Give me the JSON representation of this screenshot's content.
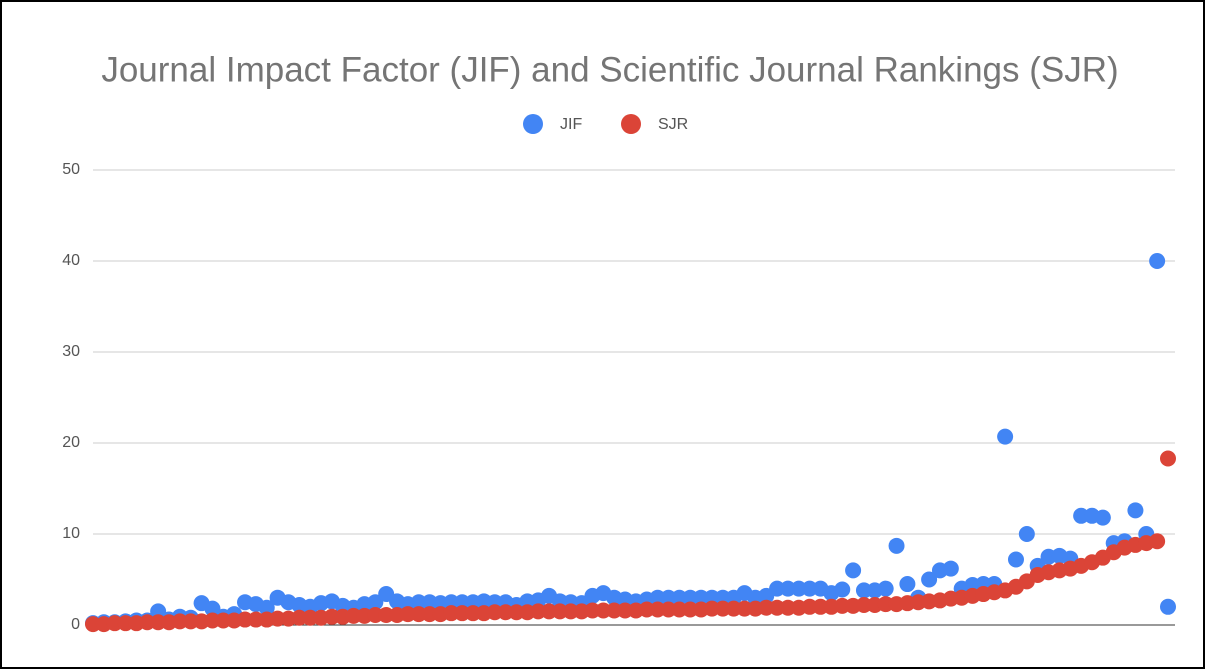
{
  "chart_data": {
    "type": "scatter",
    "title": "Journal Impact Factor (JIF) and Scientific Journal Rankings (SJR)",
    "legend": "top",
    "grid": true,
    "ylim": [
      0,
      50
    ],
    "yticks": [
      0,
      10,
      20,
      30,
      40,
      50
    ],
    "series": [
      {
        "name": "JIF",
        "color": "#4285f4",
        "values": [
          0.2,
          0.3,
          0.3,
          0.4,
          0.5,
          0.5,
          1.5,
          0.6,
          0.9,
          0.8,
          2.4,
          1.8,
          0.9,
          1.2,
          2.5,
          2.3,
          1.9,
          3.0,
          2.5,
          2.2,
          2.0,
          2.4,
          2.6,
          2.1,
          1.9,
          2.3,
          2.5,
          3.4,
          2.6,
          2.3,
          2.5,
          2.5,
          2.4,
          2.5,
          2.5,
          2.5,
          2.6,
          2.5,
          2.5,
          2.2,
          2.6,
          2.7,
          3.2,
          2.6,
          2.5,
          2.4,
          3.2,
          3.5,
          3.0,
          2.8,
          2.6,
          2.8,
          3.0,
          3.0,
          3.0,
          3.0,
          3.0,
          3.0,
          3.0,
          3.0,
          3.5,
          3.0,
          3.2,
          4.0,
          4.0,
          4.0,
          4.0,
          4.0,
          3.5,
          3.9,
          6.0,
          3.8,
          3.8,
          4.0,
          8.7,
          4.5,
          3.0,
          5.0,
          6.0,
          6.2,
          4.0,
          4.4,
          4.5,
          4.5,
          20.7,
          7.2,
          10.0,
          6.5,
          7.5,
          7.6,
          7.3,
          12.0,
          12.0,
          11.8,
          9.0,
          9.2,
          12.6,
          10.0,
          40.0,
          2.0
        ]
      },
      {
        "name": "SJR",
        "color": "#db4437",
        "values": [
          0.1,
          0.1,
          0.2,
          0.2,
          0.2,
          0.3,
          0.3,
          0.3,
          0.4,
          0.4,
          0.4,
          0.5,
          0.5,
          0.5,
          0.6,
          0.6,
          0.6,
          0.7,
          0.7,
          0.8,
          0.8,
          0.8,
          0.9,
          0.9,
          1.0,
          1.0,
          1.1,
          1.1,
          1.1,
          1.2,
          1.2,
          1.2,
          1.2,
          1.3,
          1.3,
          1.3,
          1.3,
          1.4,
          1.4,
          1.4,
          1.4,
          1.5,
          1.5,
          1.5,
          1.5,
          1.5,
          1.6,
          1.6,
          1.6,
          1.6,
          1.6,
          1.7,
          1.7,
          1.7,
          1.7,
          1.7,
          1.7,
          1.8,
          1.8,
          1.8,
          1.8,
          1.8,
          1.9,
          1.9,
          1.9,
          1.9,
          2.0,
          2.0,
          2.0,
          2.1,
          2.1,
          2.2,
          2.2,
          2.3,
          2.3,
          2.4,
          2.5,
          2.6,
          2.7,
          2.9,
          3.0,
          3.2,
          3.4,
          3.6,
          3.8,
          4.2,
          4.8,
          5.5,
          5.8,
          6.0,
          6.2,
          6.5,
          6.9,
          7.4,
          8.0,
          8.5,
          8.8,
          9.0,
          9.2,
          18.3
        ]
      }
    ]
  }
}
